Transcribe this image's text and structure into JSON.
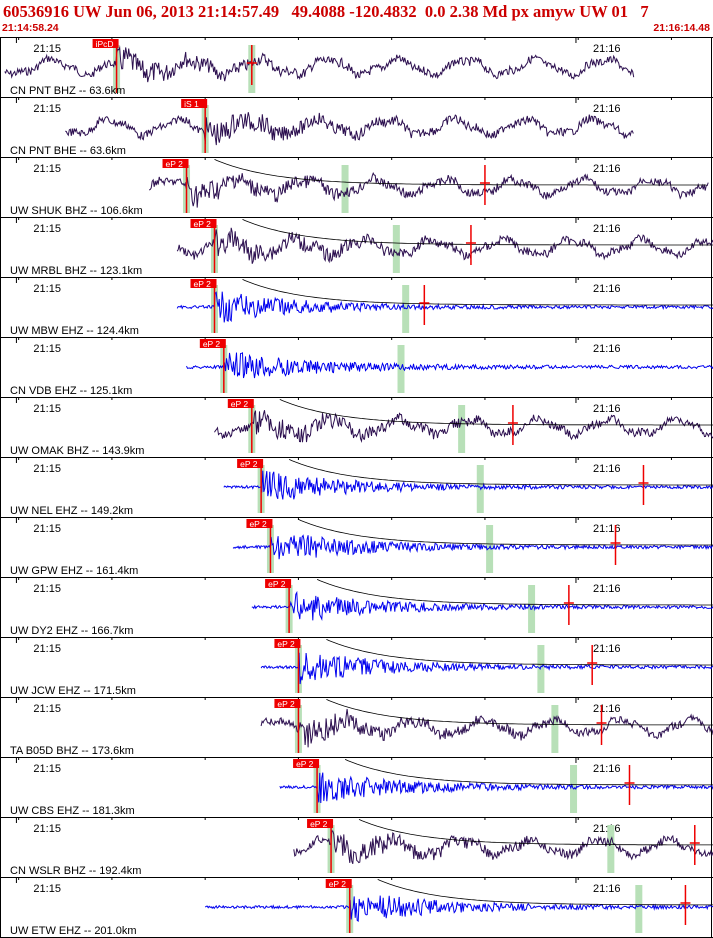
{
  "header": {
    "title": "60536916 UW Jun 06, 2013 21:14:57.49   49.4088 -120.4832  0.0 2.38 Md px amyw UW 01   7",
    "start_time": "21:14:58.24",
    "end_time": "21:16:14.48"
  },
  "colors": {
    "header_text": "#cc0000",
    "trace_bhz": "#2d1050",
    "trace_ehz": "#0000ee",
    "pick_flag": "#ee0000",
    "window_bar": "#b8e0b8",
    "coda_curve": "#000000"
  },
  "chart_data": {
    "type": "seismogram",
    "x_unit": "time (UTC)",
    "x_range": [
      "21:14:58.24",
      "21:16:14.48"
    ],
    "tick_labels": [
      "21:15",
      "21:16"
    ],
    "traces": [
      {
        "label": "CN PNT BHZ -- 63.6km",
        "station": "PNT",
        "network": "CN",
        "channel": "BHZ",
        "distance_km": 63.6,
        "pick": "iPcD",
        "pick_time_s": 12.5,
        "coda_end_s": 27.0,
        "marker_s": 27.0,
        "onset_s": 12.5,
        "end_s": 68.0,
        "curve": false
      },
      {
        "label": "CN PNT BHE -- 63.6km",
        "station": "PNT",
        "network": "CN",
        "channel": "BHE",
        "distance_km": 63.6,
        "pick": "iS 1",
        "pick_time_s": 22.0,
        "coda_end_s": null,
        "marker_s": null,
        "onset_s": 19.0,
        "end_s": 68.0,
        "curve": false
      },
      {
        "label": "UW SHUK BHZ -- 106.6km",
        "station": "SHUK",
        "network": "UW",
        "channel": "BHZ",
        "distance_km": 106.6,
        "pick": "eP 2",
        "pick_time_s": 20.0,
        "coda_end_s": 37.0,
        "marker_s": 52.0,
        "onset_s": 20.0,
        "end_s": 76.0,
        "curve": true
      },
      {
        "label": "UW MRBL BHZ -- 123.1km",
        "station": "MRBL",
        "network": "UW",
        "channel": "BHZ",
        "distance_km": 123.1,
        "pick": "eP 2",
        "pick_time_s": 23.0,
        "coda_end_s": 42.5,
        "marker_s": 50.5,
        "onset_s": 23.0,
        "end_s": 79.0,
        "curve": true
      },
      {
        "label": "UW MBW EHZ -- 124.4km",
        "station": "MBW",
        "network": "UW",
        "channel": "EHZ",
        "distance_km": 124.4,
        "pick": "eP 2",
        "pick_time_s": 23.0,
        "coda_end_s": 43.5,
        "marker_s": 45.5,
        "onset_s": 23.0,
        "end_s": 80.0,
        "curve": true
      },
      {
        "label": "CN VDB EHZ -- 125.1km",
        "station": "VDB",
        "network": "CN",
        "channel": "EHZ",
        "distance_km": 125.1,
        "pick": "eP 2",
        "pick_time_s": 24.0,
        "coda_end_s": 43.0,
        "marker_s": null,
        "onset_s": 24.0,
        "end_s": 80.0,
        "curve": false
      },
      {
        "label": "UW OMAK BHZ -- 143.9km",
        "station": "OMAK",
        "network": "UW",
        "channel": "BHZ",
        "distance_km": 143.9,
        "pick": "eP 2",
        "pick_time_s": 27.0,
        "coda_end_s": 49.5,
        "marker_s": 55.0,
        "onset_s": 27.0,
        "end_s": 83.0,
        "curve": true
      },
      {
        "label": "UW NEL EHZ -- 149.2km",
        "station": "NEL",
        "network": "UW",
        "channel": "EHZ",
        "distance_km": 149.2,
        "pick": "eP 2",
        "pick_time_s": 28.0,
        "coda_end_s": 51.5,
        "marker_s": 69.0,
        "onset_s": 28.0,
        "end_s": 84.0,
        "curve": true
      },
      {
        "label": "UW GPW EHZ -- 161.4km",
        "station": "GPW",
        "network": "UW",
        "channel": "EHZ",
        "distance_km": 161.4,
        "pick": "eP 2",
        "pick_time_s": 29.0,
        "coda_end_s": 52.5,
        "marker_s": 66.0,
        "onset_s": 29.0,
        "end_s": 85.0,
        "curve": true
      },
      {
        "label": "UW DY2 EHZ -- 166.7km",
        "station": "DY2",
        "network": "UW",
        "channel": "EHZ",
        "distance_km": 166.7,
        "pick": "eP 2",
        "pick_time_s": 31.0,
        "coda_end_s": 57.0,
        "marker_s": 61.0,
        "onset_s": 31.0,
        "end_s": 88.0,
        "curve": true
      },
      {
        "label": "UW JCW EHZ -- 171.5km",
        "station": "JCW",
        "network": "UW",
        "channel": "EHZ",
        "distance_km": 171.5,
        "pick": "eP 2",
        "pick_time_s": 32.0,
        "coda_end_s": 58.0,
        "marker_s": 63.5,
        "onset_s": 32.0,
        "end_s": 89.0,
        "curve": true
      },
      {
        "label": "TA B05D BHZ -- 173.6km",
        "station": "B05D",
        "network": "TA",
        "channel": "BHZ",
        "distance_km": 173.6,
        "pick": "eP 2",
        "pick_time_s": 32.0,
        "coda_end_s": 59.5,
        "marker_s": 64.5,
        "onset_s": 32.0,
        "end_s": 89.0,
        "curve": true
      },
      {
        "label": "UW CBS EHZ -- 181.3km",
        "station": "CBS",
        "network": "UW",
        "channel": "EHZ",
        "distance_km": 181.3,
        "pick": "eP 2",
        "pick_time_s": 34.0,
        "coda_end_s": 61.5,
        "marker_s": 67.5,
        "onset_s": 34.0,
        "end_s": 91.0,
        "curve": true
      },
      {
        "label": "CN WSLR BHZ -- 192.4km",
        "station": "WSLR",
        "network": "CN",
        "channel": "BHZ",
        "distance_km": 192.4,
        "pick": "eP 2",
        "pick_time_s": 35.5,
        "coda_end_s": 65.5,
        "marker_s": 74.5,
        "onset_s": 35.5,
        "end_s": 93.0,
        "curve": true
      },
      {
        "label": "UW ETW EHZ -- 201.0km",
        "station": "ETW",
        "network": "UW",
        "channel": "EHZ",
        "distance_km": 201.0,
        "pick": "eP 2",
        "pick_time_s": 37.5,
        "coda_end_s": 68.5,
        "marker_s": 73.5,
        "onset_s": 26.0,
        "end_s": 90.0,
        "curve": true
      }
    ]
  }
}
